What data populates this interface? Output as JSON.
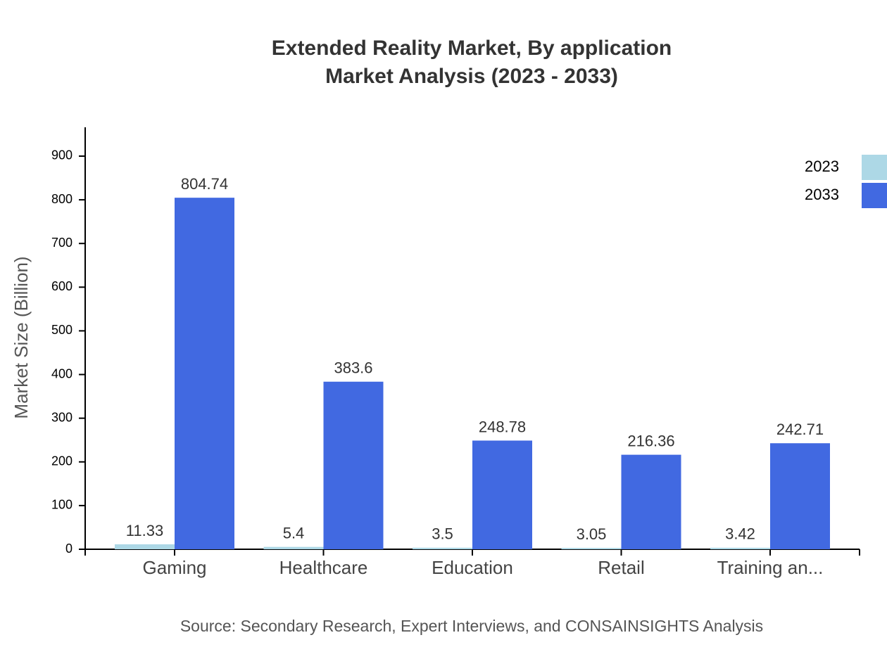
{
  "chart_data": {
    "type": "bar",
    "title": "Extended Reality Market, By application",
    "subtitle": "Market Analysis (2023 - 2033)",
    "y_label": "Market Size (Billion)",
    "source": "Source: Secondary Research, Expert Interviews, and CONSAINSIGHTS Analysis",
    "categories": [
      "Gaming",
      "Healthcare",
      "Education",
      "Retail",
      "Training an..."
    ],
    "series": [
      {
        "name": "2023",
        "color": "#add8e6",
        "values": [
          11.33,
          5.4,
          3.5,
          3.05,
          3.42
        ]
      },
      {
        "name": "2033",
        "color": "#4169e1",
        "values": [
          804.74,
          383.6,
          248.78,
          216.36,
          242.71
        ]
      }
    ],
    "ylim": [
      0,
      966
    ],
    "yticks": [
      0,
      100,
      200,
      300,
      400,
      500,
      600,
      700,
      800,
      900
    ],
    "legend": "top-right"
  }
}
